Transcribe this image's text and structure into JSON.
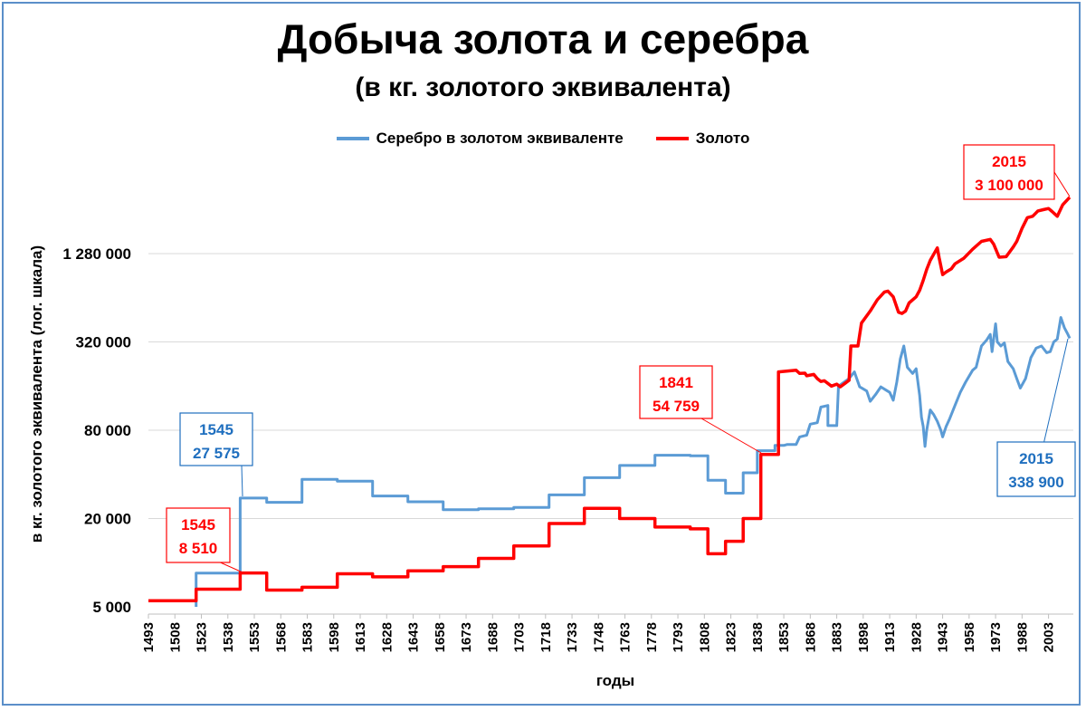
{
  "chart_data": {
    "type": "line",
    "title": "Добыча золота и серебра",
    "subtitle": "(в кг. золотого эквивалента)",
    "xlabel": "годы",
    "ylabel": "в кг. золотого эквивалента  (лог. шкала)",
    "y_scale": "log",
    "ylim": [
      5000,
      3100000
    ],
    "xlim": [
      1493,
      2015
    ],
    "grid": "horizontal",
    "legend_position": "top",
    "y_ticks": [
      {
        "value": 5000,
        "label": "5 000"
      },
      {
        "value": 20000,
        "label": "20 000"
      },
      {
        "value": 80000,
        "label": "80 000"
      },
      {
        "value": 320000,
        "label": "320 000"
      },
      {
        "value": 1280000,
        "label": "1 280 000"
      }
    ],
    "x_tick_labels": [
      "1493",
      "1508",
      "1523",
      "1538",
      "1553",
      "1568",
      "1583",
      "1598",
      "1613",
      "1628",
      "1643",
      "1658",
      "1673",
      "1688",
      "1703",
      "1718",
      "1733",
      "1748",
      "1763",
      "1778",
      "1793",
      "1808",
      "1823",
      "1838",
      "1853",
      "1868",
      "1883",
      "1898",
      "1913",
      "1928",
      "1943",
      "1958",
      "1973",
      "1988",
      "2003"
    ],
    "series": [
      {
        "name": "Серебро в золотом эквиваленте",
        "color": "#5b9bd5",
        "points": [
          [
            1520,
            5000
          ],
          [
            1520,
            8500
          ],
          [
            1545,
            8500
          ],
          [
            1545,
            27575
          ],
          [
            1560,
            27575
          ],
          [
            1560,
            25800
          ],
          [
            1580,
            25800
          ],
          [
            1580,
            37000
          ],
          [
            1600,
            37000
          ],
          [
            1600,
            36000
          ],
          [
            1620,
            36000
          ],
          [
            1620,
            28500
          ],
          [
            1640,
            28500
          ],
          [
            1640,
            26000
          ],
          [
            1660,
            26000
          ],
          [
            1660,
            23000
          ],
          [
            1680,
            23000
          ],
          [
            1680,
            23300
          ],
          [
            1700,
            23300
          ],
          [
            1700,
            23800
          ],
          [
            1720,
            23800
          ],
          [
            1720,
            29000
          ],
          [
            1740,
            29000
          ],
          [
            1740,
            38000
          ],
          [
            1760,
            38000
          ],
          [
            1760,
            46000
          ],
          [
            1780,
            46000
          ],
          [
            1780,
            54000
          ],
          [
            1800,
            54000
          ],
          [
            1800,
            53500
          ],
          [
            1810,
            53500
          ],
          [
            1810,
            36500
          ],
          [
            1820,
            36500
          ],
          [
            1820,
            29800
          ],
          [
            1830,
            29800
          ],
          [
            1830,
            41000
          ],
          [
            1838,
            41000
          ],
          [
            1838,
            58000
          ],
          [
            1848,
            58000
          ],
          [
            1848,
            63000
          ],
          [
            1853,
            63000
          ],
          [
            1855,
            64000
          ],
          [
            1860,
            64000
          ],
          [
            1862,
            72000
          ],
          [
            1866,
            74000
          ],
          [
            1868,
            88000
          ],
          [
            1872,
            90000
          ],
          [
            1874,
            115000
          ],
          [
            1878,
            118000
          ],
          [
            1878,
            86000
          ],
          [
            1883,
            86000
          ],
          [
            1884,
            160000
          ],
          [
            1890,
            180000
          ],
          [
            1893,
            200000
          ],
          [
            1896,
            158000
          ],
          [
            1900,
            148000
          ],
          [
            1902,
            126000
          ],
          [
            1905,
            140000
          ],
          [
            1908,
            158000
          ],
          [
            1911,
            150000
          ],
          [
            1913,
            145000
          ],
          [
            1915,
            128000
          ],
          [
            1917,
            170000
          ],
          [
            1919,
            245000
          ],
          [
            1921,
            300000
          ],
          [
            1923,
            215000
          ],
          [
            1926,
            195000
          ],
          [
            1928,
            210000
          ],
          [
            1930,
            138000
          ],
          [
            1931,
            98000
          ],
          [
            1932,
            85000
          ],
          [
            1933,
            62000
          ],
          [
            1934,
            80000
          ],
          [
            1936,
            110000
          ],
          [
            1938,
            102000
          ],
          [
            1940,
            92000
          ],
          [
            1942,
            80000
          ],
          [
            1943,
            72000
          ],
          [
            1945,
            85000
          ],
          [
            1947,
            96000
          ],
          [
            1950,
            118000
          ],
          [
            1953,
            145000
          ],
          [
            1956,
            170000
          ],
          [
            1960,
            205000
          ],
          [
            1962,
            215000
          ],
          [
            1965,
            300000
          ],
          [
            1968,
            330000
          ],
          [
            1970,
            360000
          ],
          [
            1971,
            275000
          ],
          [
            1973,
            425000
          ],
          [
            1974,
            320000
          ],
          [
            1976,
            300000
          ],
          [
            1978,
            315000
          ],
          [
            1980,
            235000
          ],
          [
            1983,
            210000
          ],
          [
            1985,
            180000
          ],
          [
            1987,
            155000
          ],
          [
            1990,
            180000
          ],
          [
            1993,
            250000
          ],
          [
            1996,
            290000
          ],
          [
            1999,
            300000
          ],
          [
            2002,
            270000
          ],
          [
            2004,
            275000
          ],
          [
            2006,
            320000
          ],
          [
            2008,
            335000
          ],
          [
            2010,
            470000
          ],
          [
            2012,
            400000
          ],
          [
            2014,
            360000
          ],
          [
            2015,
            338900
          ]
        ]
      },
      {
        "name": "Золото",
        "color": "#ff0000",
        "points": [
          [
            1493,
            5500
          ],
          [
            1520,
            5500
          ],
          [
            1520,
            6600
          ],
          [
            1545,
            6600
          ],
          [
            1545,
            8510
          ],
          [
            1560,
            8510
          ],
          [
            1560,
            6500
          ],
          [
            1580,
            6500
          ],
          [
            1580,
            6800
          ],
          [
            1600,
            6800
          ],
          [
            1600,
            8400
          ],
          [
            1620,
            8400
          ],
          [
            1620,
            8000
          ],
          [
            1640,
            8000
          ],
          [
            1640,
            8800
          ],
          [
            1660,
            8800
          ],
          [
            1660,
            9400
          ],
          [
            1680,
            9400
          ],
          [
            1680,
            10700
          ],
          [
            1700,
            10700
          ],
          [
            1700,
            13000
          ],
          [
            1720,
            13000
          ],
          [
            1720,
            18500
          ],
          [
            1740,
            18500
          ],
          [
            1740,
            23500
          ],
          [
            1760,
            23500
          ],
          [
            1760,
            20000
          ],
          [
            1780,
            20000
          ],
          [
            1780,
            17500
          ],
          [
            1800,
            17500
          ],
          [
            1800,
            17000
          ],
          [
            1810,
            17000
          ],
          [
            1810,
            11500
          ],
          [
            1820,
            11500
          ],
          [
            1820,
            14000
          ],
          [
            1830,
            14000
          ],
          [
            1830,
            20000
          ],
          [
            1840,
            20000
          ],
          [
            1840,
            54759
          ],
          [
            1850,
            54759
          ],
          [
            1850,
            200000
          ],
          [
            1860,
            205000
          ],
          [
            1862,
            195000
          ],
          [
            1865,
            196000
          ],
          [
            1866,
            188000
          ],
          [
            1870,
            192000
          ],
          [
            1872,
            180000
          ],
          [
            1874,
            172000
          ],
          [
            1876,
            174000
          ],
          [
            1880,
            160000
          ],
          [
            1883,
            165000
          ],
          [
            1885,
            158000
          ],
          [
            1888,
            168000
          ],
          [
            1890,
            175000
          ],
          [
            1891,
            300000
          ],
          [
            1895,
            300000
          ],
          [
            1897,
            430000
          ],
          [
            1902,
            520000
          ],
          [
            1906,
            620000
          ],
          [
            1910,
            700000
          ],
          [
            1912,
            710000
          ],
          [
            1915,
            650000
          ],
          [
            1918,
            510000
          ],
          [
            1920,
            500000
          ],
          [
            1922,
            520000
          ],
          [
            1924,
            590000
          ],
          [
            1928,
            650000
          ],
          [
            1930,
            720000
          ],
          [
            1932,
            840000
          ],
          [
            1934,
            1000000
          ],
          [
            1936,
            1150000
          ],
          [
            1940,
            1400000
          ],
          [
            1941,
            1200000
          ],
          [
            1943,
            920000
          ],
          [
            1945,
            960000
          ],
          [
            1948,
            1010000
          ],
          [
            1950,
            1090000
          ],
          [
            1955,
            1190000
          ],
          [
            1960,
            1370000
          ],
          [
            1965,
            1550000
          ],
          [
            1970,
            1600000
          ],
          [
            1972,
            1480000
          ],
          [
            1975,
            1210000
          ],
          [
            1979,
            1220000
          ],
          [
            1983,
            1420000
          ],
          [
            1985,
            1550000
          ],
          [
            1988,
            1900000
          ],
          [
            1991,
            2250000
          ],
          [
            1994,
            2300000
          ],
          [
            1997,
            2500000
          ],
          [
            2000,
            2550000
          ],
          [
            2003,
            2600000
          ],
          [
            2005,
            2480000
          ],
          [
            2008,
            2300000
          ],
          [
            2011,
            2750000
          ],
          [
            2015,
            3100000
          ]
        ]
      }
    ],
    "annotations": [
      {
        "year": "1545",
        "value": "27 575",
        "color": "#1f6fbf"
      },
      {
        "year": "1545",
        "value": "8 510",
        "color": "#ff0000"
      },
      {
        "year": "1841",
        "value": "54 759",
        "color": "#ff0000"
      },
      {
        "year": "2015",
        "value": "3 100 000",
        "color": "#ff0000"
      },
      {
        "year": "2015",
        "value": "338 900",
        "color": "#1f6fbf"
      }
    ]
  }
}
